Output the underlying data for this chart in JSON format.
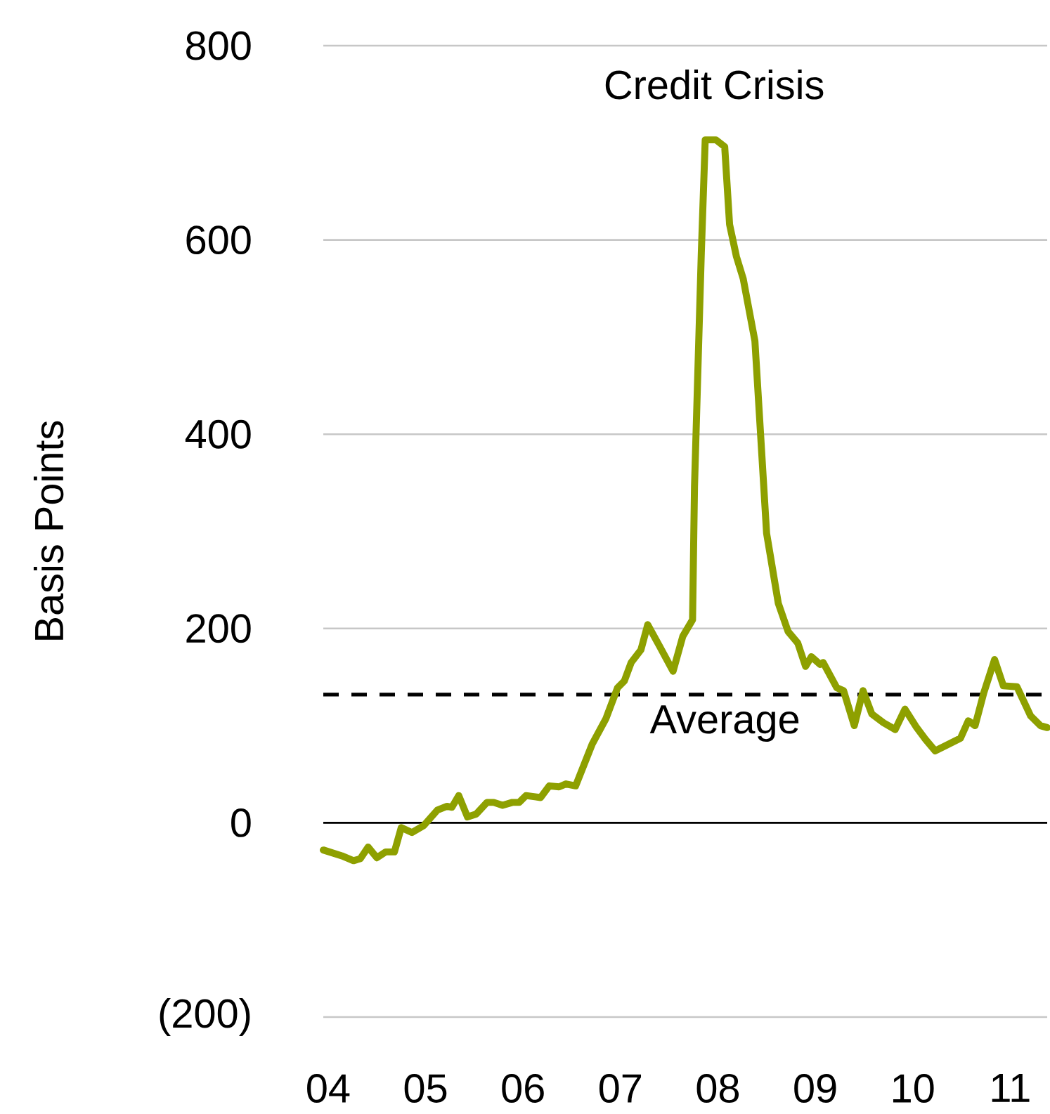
{
  "chart_data": {
    "type": "line",
    "ylabel": "Basis Points",
    "annotations": [
      "Credit Crisis"
    ],
    "x": [
      2003.95,
      2004.14,
      2004.26,
      2004.33,
      2004.41,
      2004.5,
      2004.59,
      2004.68,
      2004.75,
      2004.86,
      2004.98,
      2005.12,
      2005.22,
      2005.27,
      2005.34,
      2005.43,
      2005.52,
      2005.63,
      2005.7,
      2005.79,
      2005.89,
      2005.96,
      2006.03,
      2006.18,
      2006.27,
      2006.37,
      2006.44,
      2006.54,
      2006.71,
      2006.85,
      2006.97,
      2007.04,
      2007.11,
      2007.21,
      2007.28,
      2007.4,
      2007.54,
      2007.64,
      2007.74,
      2007.76,
      2007.83,
      2007.87,
      2007.98,
      2008.07,
      2008.12,
      2008.19,
      2008.26,
      2008.38,
      2008.5,
      2008.62,
      2008.72,
      2008.82,
      2008.9,
      2008.96,
      2009.05,
      2009.08,
      2009.22,
      2009.29,
      2009.4,
      2009.49,
      2009.58,
      2009.7,
      2009.82,
      2009.92,
      2010.04,
      2010.13,
      2010.23,
      2010.35,
      2010.49,
      2010.57,
      2010.64,
      2010.73,
      2010.84,
      2010.93,
      2011.07,
      2011.21,
      2011.31,
      2011.38
    ],
    "series": [
      {
        "color": "#8ea000",
        "values": [
          -28,
          -34,
          -39,
          -37,
          -25,
          -36,
          -30,
          -30,
          -5,
          -10,
          -3,
          13,
          17,
          16,
          28,
          6,
          9,
          21,
          21,
          18,
          21,
          21,
          28,
          26,
          38,
          37,
          40,
          38,
          81,
          107,
          139,
          146,
          165,
          178,
          204,
          182,
          156,
          192,
          209,
          346,
          587,
          703,
          703,
          696,
          616,
          583,
          560,
          496,
          298,
          226,
          197,
          185,
          161,
          171,
          163,
          165,
          139,
          136,
          100,
          136,
          112,
          103,
          96,
          117,
          98,
          86,
          74,
          80,
          87,
          105,
          100,
          134,
          168,
          141,
          140,
          110,
          100,
          98
        ]
      }
    ],
    "xlim": [
      2003.95,
      2011.38
    ],
    "xticks": [
      {
        "value": 2004,
        "label": "04"
      },
      {
        "value": 2005,
        "label": "05"
      },
      {
        "value": 2006,
        "label": "06"
      },
      {
        "value": 2007,
        "label": "07"
      },
      {
        "value": 2008,
        "label": "08"
      },
      {
        "value": 2009,
        "label": "09"
      },
      {
        "value": 2010,
        "label": "10"
      },
      {
        "value": 2011,
        "label": "11"
      }
    ],
    "ylim": [
      -200,
      800
    ],
    "yticks": [
      {
        "value": -200,
        "label": "(200)"
      },
      0,
      200,
      400,
      600,
      800
    ],
    "grid": "y",
    "marker": "none",
    "line_style": "solid",
    "ref_lines": [
      {
        "axis": "y",
        "value": 132,
        "label": "Average",
        "color": "#000000",
        "line_style": "dashed"
      }
    ]
  }
}
